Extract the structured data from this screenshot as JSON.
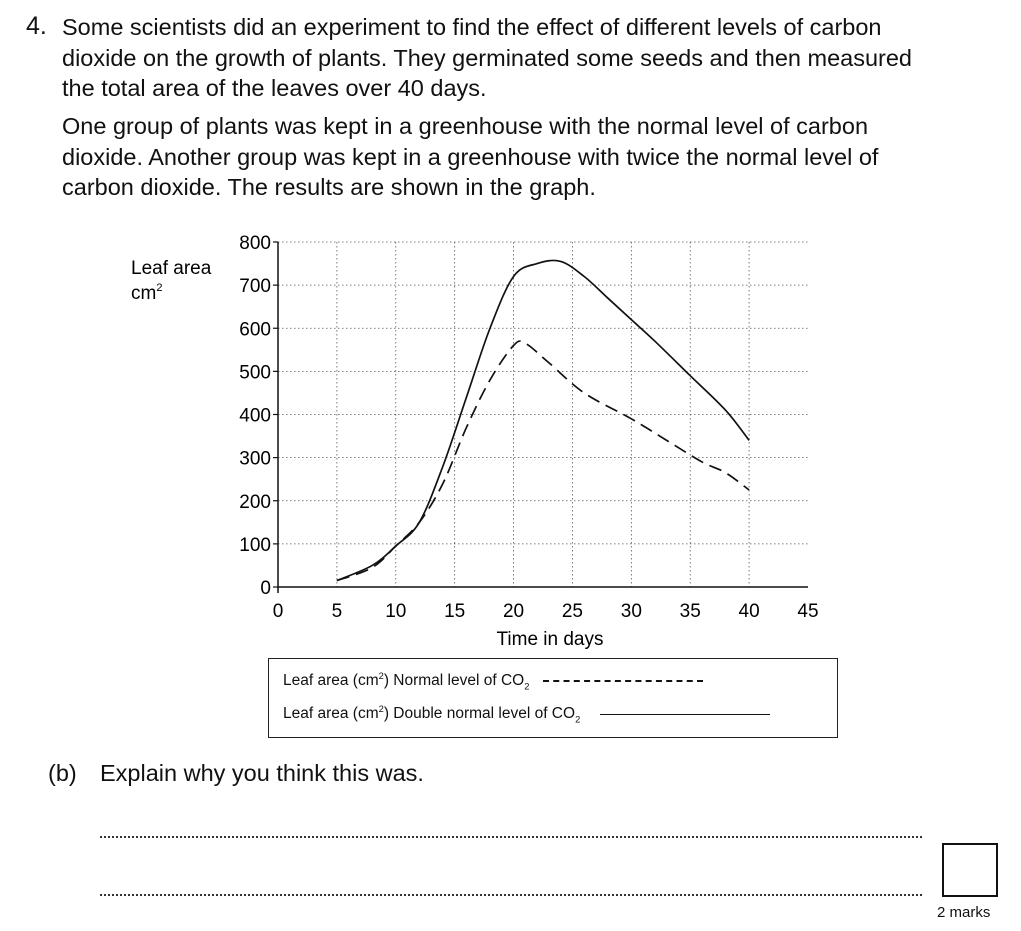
{
  "question": {
    "number": "4.",
    "paragraph1": "Some scientists did an experiment to find the effect of different levels of carbon dioxide on the growth of plants. They germinated some seeds and then measured the total area of the leaves over 40 days.",
    "paragraph2": "One group of plants was kept in a greenhouse with the normal level of carbon dioxide. Another group was kept in a greenhouse with twice the normal level of carbon dioxide. The results are shown in the graph."
  },
  "chart_data": {
    "type": "line",
    "ylabel": "Leaf area",
    "ylabel_unit": "cm",
    "ylabel_unit_sup": "2",
    "xlabel": "Time in days",
    "xlim": [
      0,
      45
    ],
    "ylim": [
      0,
      800
    ],
    "xticks": [
      "0",
      "5",
      "10",
      "15",
      "20",
      "25",
      "30",
      "35",
      "40",
      "45"
    ],
    "yticks": [
      "0",
      "100",
      "200",
      "300",
      "400",
      "500",
      "600",
      "700",
      "800"
    ],
    "grid": true,
    "series": [
      {
        "name": "Leaf area (cm²) Normal level of CO₂",
        "style": "dashed",
        "points": [
          [
            5,
            15
          ],
          [
            8,
            45
          ],
          [
            10,
            95
          ],
          [
            12,
            150
          ],
          [
            14,
            240
          ],
          [
            16,
            370
          ],
          [
            18,
            480
          ],
          [
            20,
            560
          ],
          [
            21,
            565
          ],
          [
            23,
            520
          ],
          [
            26,
            450
          ],
          [
            30,
            390
          ],
          [
            33,
            340
          ],
          [
            36,
            290
          ],
          [
            38,
            265
          ],
          [
            40,
            225
          ]
        ]
      },
      {
        "name": "Leaf area (cm²) Double normal level of CO₂",
        "style": "solid",
        "points": [
          [
            5,
            15
          ],
          [
            8,
            50
          ],
          [
            10,
            95
          ],
          [
            12,
            150
          ],
          [
            14,
            280
          ],
          [
            16,
            440
          ],
          [
            18,
            600
          ],
          [
            20,
            720
          ],
          [
            22,
            750
          ],
          [
            24,
            755
          ],
          [
            26,
            720
          ],
          [
            28,
            670
          ],
          [
            30,
            620
          ],
          [
            32,
            570
          ],
          [
            35,
            490
          ],
          [
            38,
            410
          ],
          [
            40,
            340
          ]
        ]
      }
    ],
    "legend": [
      {
        "prefix": "Leaf area (cm",
        "sup": "2",
        "middle": ") Normal level of CO",
        "sub": "2"
      },
      {
        "prefix": "Leaf area (cm",
        "sup": "2",
        "middle": ") Double normal level of CO",
        "sub": "2"
      }
    ]
  },
  "part_b": {
    "label": "(b)",
    "prompt": "Explain why you think this was."
  },
  "marks": "2 marks"
}
